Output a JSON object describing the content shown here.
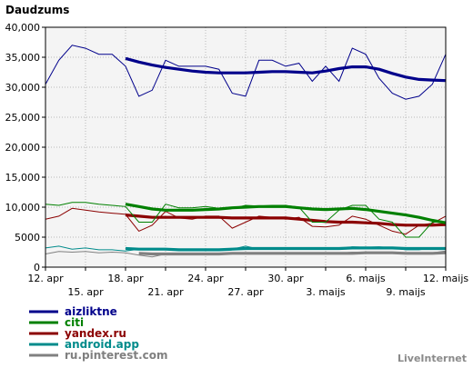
{
  "chart_data": {
    "type": "line",
    "ylabel": "Daudzums",
    "ylim": [
      0,
      40000
    ],
    "yticks": [
      0,
      5000,
      10000,
      15000,
      20000,
      25000,
      30000,
      35000,
      40000
    ],
    "ytick_labels": [
      "0",
      "5000",
      "10,000",
      "15,000",
      "20,000",
      "25,000",
      "30,000",
      "35,000",
      "40,000"
    ],
    "grid": true,
    "background": "#f4f4f4",
    "xtick_labels_row1": [
      "12. apr",
      "18. apr",
      "24. apr",
      "30. apr",
      "6. maijs",
      "12. maijs"
    ],
    "xtick_labels_row2": [
      "15. apr",
      "21. apr",
      "27. apr",
      "3. maijs",
      "9. maijs"
    ],
    "x_days": 31,
    "series": [
      {
        "name": "aizliktne",
        "color": "#00008b",
        "daily": [
          30500,
          34500,
          37000,
          36500,
          35500,
          35500,
          33500,
          28500,
          29500,
          34500,
          33500,
          33500,
          33500,
          33000,
          29000,
          28500,
          34500,
          34500,
          33500,
          34000,
          31000,
          33500,
          31000,
          36500,
          35500,
          31500,
          29000,
          28000,
          28500,
          30500,
          35500
        ],
        "trend": [
          null,
          null,
          null,
          null,
          null,
          null,
          34800,
          34200,
          33700,
          33300,
          33000,
          32700,
          32500,
          32400,
          32400,
          32400,
          32500,
          32600,
          32600,
          32500,
          32400,
          32700,
          33100,
          33400,
          33400,
          33000,
          32300,
          31700,
          31300,
          31200,
          31100
        ]
      },
      {
        "name": "citi",
        "color": "#008000",
        "daily": [
          10500,
          10300,
          10800,
          10800,
          10500,
          10300,
          10100,
          7500,
          7500,
          10500,
          9900,
          9900,
          10100,
          9800,
          9800,
          10300,
          10200,
          10300,
          10300,
          10000,
          7500,
          7500,
          9500,
          10300,
          10300,
          8000,
          7500,
          5000,
          5000,
          7500,
          7500
        ],
        "trend": [
          null,
          null,
          null,
          null,
          null,
          null,
          10500,
          10100,
          9700,
          9500,
          9500,
          9500,
          9600,
          9700,
          9900,
          10000,
          10100,
          10100,
          10100,
          9900,
          9700,
          9600,
          9700,
          9800,
          9600,
          9300,
          9000,
          8700,
          8300,
          7800,
          7400
        ]
      },
      {
        "name": "yandex.ru",
        "color": "#8b0000",
        "daily": [
          8000,
          8500,
          9800,
          9500,
          9200,
          9000,
          8800,
          6000,
          7000,
          9300,
          8200,
          8000,
          8500,
          8500,
          6500,
          7500,
          8500,
          8300,
          8000,
          8300,
          6800,
          6700,
          7000,
          8500,
          8000,
          7000,
          6000,
          5500,
          7000,
          7300,
          8500
        ],
        "trend": [
          null,
          null,
          null,
          null,
          null,
          null,
          8700,
          8500,
          8300,
          8300,
          8300,
          8300,
          8300,
          8300,
          8200,
          8200,
          8200,
          8200,
          8200,
          8000,
          7800,
          7600,
          7500,
          7500,
          7400,
          7300,
          7100,
          7000,
          7000,
          7000,
          7100
        ]
      },
      {
        "name": "android.app",
        "color": "#008b8b",
        "daily": [
          3200,
          3500,
          3000,
          3200,
          2900,
          2900,
          2700,
          3000,
          2900,
          2900,
          3000,
          2900,
          2900,
          2900,
          3000,
          3500,
          3000,
          3000,
          3200,
          3200,
          3000,
          3200,
          3000,
          3400,
          3300,
          3400,
          3200,
          2900,
          2900,
          3200,
          3000
        ],
        "trend": [
          null,
          null,
          null,
          null,
          null,
          null,
          3100,
          3000,
          3000,
          3000,
          2900,
          2900,
          2900,
          2900,
          3000,
          3100,
          3100,
          3100,
          3100,
          3100,
          3100,
          3100,
          3100,
          3200,
          3200,
          3200,
          3200,
          3100,
          3100,
          3100,
          3100
        ]
      },
      {
        "name": "ru.pinterest.com",
        "color": "#808080",
        "daily": [
          2200,
          2600,
          2500,
          2600,
          2400,
          2500,
          2400,
          2000,
          1700,
          2200,
          2100,
          2100,
          2200,
          2300,
          2300,
          2200,
          2400,
          2300,
          2200,
          2300,
          2200,
          2200,
          2300,
          2500,
          2500,
          2400,
          2300,
          2200,
          2200,
          2400,
          2700
        ],
        "trend": [
          null,
          null,
          null,
          null,
          null,
          null,
          null,
          2300,
          2200,
          2200,
          2200,
          2200,
          2200,
          2200,
          2300,
          2300,
          2300,
          2300,
          2300,
          2300,
          2300,
          2300,
          2300,
          2300,
          2400,
          2400,
          2400,
          2300,
          2300,
          2300,
          2400
        ]
      }
    ]
  },
  "brand": "LiveInternet"
}
